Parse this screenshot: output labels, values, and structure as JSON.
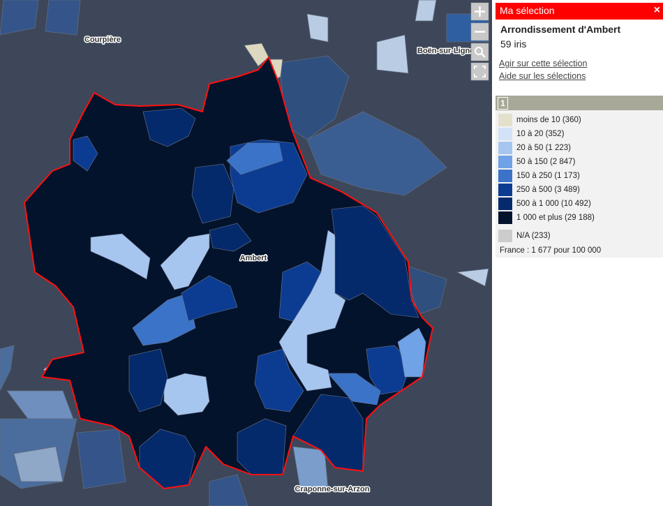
{
  "map": {
    "places": [
      {
        "label": "Courpière"
      },
      {
        "label": "Boën-sur-Lignon"
      },
      {
        "label": "Ambert"
      },
      {
        "label": "Craponne-sur-Arzon"
      }
    ]
  },
  "panel": {
    "title": "Ma sélection",
    "close": "×",
    "selection_name": "Arrondissement d'Ambert",
    "count": "59 iris",
    "links": [
      "Agir sur cette sélection",
      "Aide sur les sélections"
    ]
  },
  "legend": {
    "tab": "1",
    "items": [
      {
        "label": "moins de 10 (360)",
        "color": "#e3e1cc"
      },
      {
        "label": "10 à 20 (352)",
        "color": "#d3e2f6"
      },
      {
        "label": "20 à 50 (1 223)",
        "color": "#a7c6ef"
      },
      {
        "label": "50 à 150 (2 847)",
        "color": "#6fa2e6"
      },
      {
        "label": "150 à 250 (1 173)",
        "color": "#3a73c8"
      },
      {
        "label": "250 à 500 (3 489)",
        "color": "#0c3c92"
      },
      {
        "label": "500 à 1 000 (10 492)",
        "color": "#052a6b"
      },
      {
        "label": "1 000 et plus (29 188)",
        "color": "#04132c"
      }
    ],
    "na": {
      "label": "N/A (233)",
      "color": "#cccccc"
    },
    "note": "France : 1 677 pour 100 000"
  }
}
